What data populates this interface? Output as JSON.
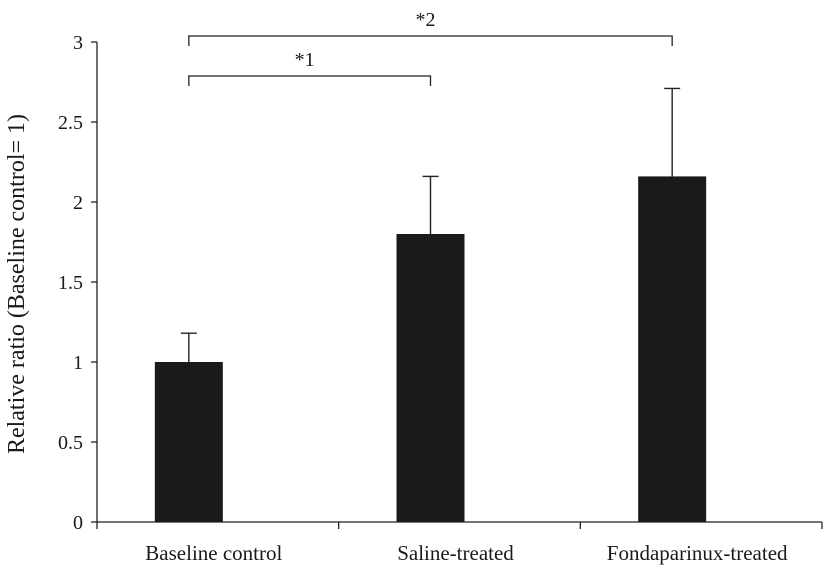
{
  "chart_data": {
    "type": "bar",
    "title": "",
    "xlabel": "",
    "ylabel": "Relative ratio (Baseline control= 1)",
    "categories": [
      "Baseline control",
      "Saline-treated",
      "Fondaparinux-treated"
    ],
    "values": [
      1.0,
      1.8,
      2.16
    ],
    "error_upper": [
      0.18,
      0.36,
      0.55
    ],
    "ylim": [
      0,
      3
    ],
    "yticks": [
      0,
      0.5,
      1,
      1.5,
      2,
      2.5,
      3
    ],
    "ytick_labels": [
      "0",
      "0.5",
      "1",
      "1.5",
      "2",
      "2.5",
      "3"
    ],
    "grid": false,
    "legend": "none",
    "bar_color": "#1a1a1a",
    "significance": [
      {
        "label": "*1",
        "from": "Baseline control",
        "to": "Saline-treated"
      },
      {
        "label": "*2",
        "from": "Baseline control",
        "to": "Fondaparinux-treated"
      }
    ]
  }
}
